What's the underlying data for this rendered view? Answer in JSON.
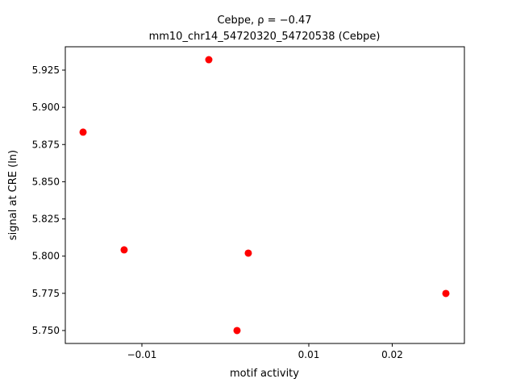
{
  "chart_data": {
    "type": "scatter",
    "title": "Cebpe, ρ = −0.47",
    "subtitle": "mm10_chr14_54720320_54720538 (Cebpe)",
    "x_label": "motif activity",
    "y_label": "signal at CRE (ln)",
    "color": "#ff0000",
    "x": [
      -0.01705,
      -0.00198,
      -0.01213,
      0.00275,
      0.0014,
      0.02643
    ],
    "values": [
      5.8833,
      5.932,
      5.8042,
      5.802,
      5.75,
      5.7749
    ],
    "xlim": [
      -0.01918,
      0.02865
    ],
    "ylim": [
      5.7413,
      5.9407
    ],
    "xticks": [
      {
        "value": -0.01,
        "label": "−0.01"
      },
      0.01,
      0.02
    ],
    "yticks": [
      {
        "value": 5.75,
        "label": "5.750"
      },
      5.775,
      {
        "value": 5.8,
        "label": "5.800"
      },
      5.825,
      {
        "value": 5.85,
        "label": "5.850"
      },
      5.875,
      {
        "value": 5.9,
        "label": "5.900"
      },
      5.925
    ]
  }
}
